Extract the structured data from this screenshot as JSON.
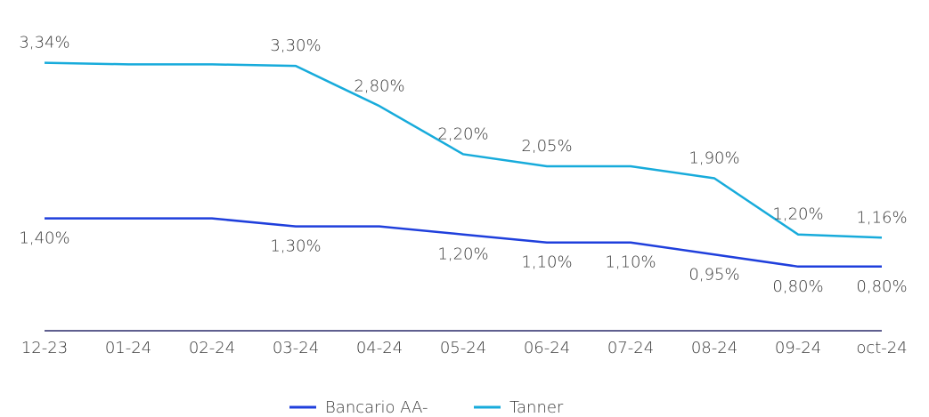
{
  "chart_data": {
    "type": "line",
    "categories": [
      "12-23",
      "01-24",
      "02-24",
      "03-24",
      "04-24",
      "05-24",
      "06-24",
      "07-24",
      "08-24",
      "09-24",
      "oct-24"
    ],
    "series": [
      {
        "name": "Bancario AA-",
        "color": "#1f3fdc",
        "values": [
          1.4,
          1.4,
          1.4,
          1.3,
          1.3,
          1.2,
          1.1,
          1.1,
          0.95,
          0.8,
          0.8
        ],
        "value_labels": [
          "1,40%",
          null,
          null,
          "1,30%",
          null,
          "1,20%",
          "1,10%",
          "1,10%",
          "0,95%",
          "0,80%",
          "0,80%"
        ]
      },
      {
        "name": "Tanner",
        "color": "#17abdb",
        "values": [
          3.34,
          3.32,
          3.32,
          3.3,
          2.8,
          2.2,
          2.05,
          2.05,
          1.9,
          1.2,
          1.16
        ],
        "value_labels": [
          "3,34%",
          null,
          null,
          "3,30%",
          "2,80%",
          "2,20%",
          "2,05%",
          null,
          "1,90%",
          "1,20%",
          "1,16%"
        ]
      }
    ],
    "ylim": [
      0,
      4
    ],
    "legend": "bottom"
  }
}
